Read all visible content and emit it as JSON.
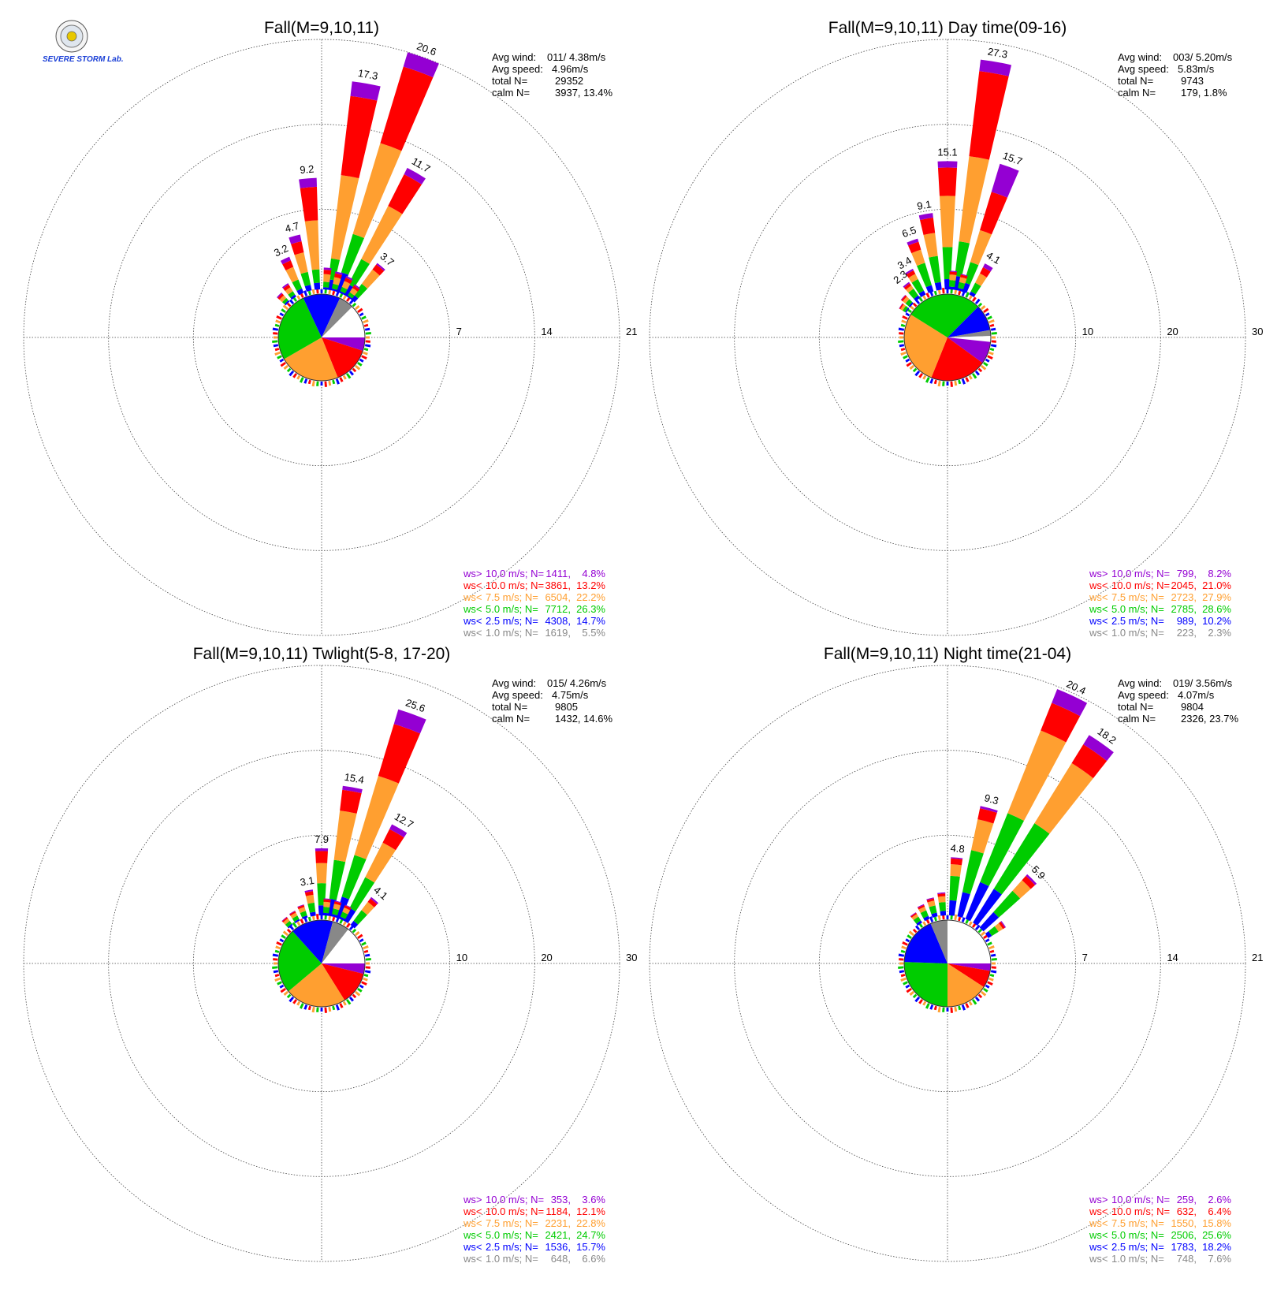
{
  "colors": {
    "purple": "#9400d3",
    "red": "#ff0000",
    "orange": "#ff9f30",
    "green": "#00cc00",
    "blue": "#0000ff",
    "gray": "#888888"
  },
  "logo": {
    "icon": "severe-storm-lab-seal-icon",
    "text": "SEVERE STORM Lab."
  },
  "chart_data": [
    {
      "type": "wind-rose",
      "title": "Fall(M=9,10,11)",
      "ring_labels": [
        "7",
        "14",
        "21"
      ],
      "rmax": 21,
      "grid": true,
      "stats": [
        {
          "label": "Avg wind:",
          "value": "011/ 4.38m/s"
        },
        {
          "label": "Avg speed:",
          "value": "4.96m/s"
        },
        {
          "label": "total N=",
          "value": "29352"
        },
        {
          "label": "calm N=",
          "value": "3937,  13.4%"
        }
      ],
      "legend": [
        {
          "class": "ws>",
          "speed": "10.0 m/s; N=",
          "n": "1411",
          "pct": "4.8%",
          "color": "#9400d3"
        },
        {
          "class": "ws<",
          "speed": "10.0 m/s; N=",
          "n": "3861",
          "pct": "13.2%",
          "color": "#ff0000"
        },
        {
          "class": "ws<",
          "speed": "7.5 m/s; N=",
          "n": "6504",
          "pct": "22.2%",
          "color": "#ff9f30"
        },
        {
          "class": "ws<",
          "speed": "5.0 m/s; N=",
          "n": "7712",
          "pct": "26.3%",
          "color": "#00cc00"
        },
        {
          "class": "ws<",
          "speed": "2.5 m/s; N=",
          "n": "4308",
          "pct": "14.7%",
          "color": "#0000ff"
        },
        {
          "class": "ws<",
          "speed": "1.0 m/s; N=",
          "n": "1619",
          "pct": "5.5%",
          "color": "#888888"
        }
      ],
      "directions": [
        {
          "deg": 355,
          "pct": 9.2,
          "label": "9.2",
          "fr": [
            0.08,
            0.3,
            0.44,
            0.12,
            0.06
          ]
        },
        {
          "deg": 10,
          "pct": 17.3,
          "label": "17.3",
          "fr": [
            0.07,
            0.38,
            0.4,
            0.1,
            0.05
          ]
        },
        {
          "deg": 20,
          "pct": 20.6,
          "label": "20.6",
          "fr": [
            0.06,
            0.32,
            0.38,
            0.16,
            0.08
          ]
        },
        {
          "deg": 30,
          "pct": 11.7,
          "label": "11.7",
          "fr": [
            0.05,
            0.25,
            0.42,
            0.2,
            0.08
          ]
        },
        {
          "deg": 345,
          "pct": 4.7,
          "label": "4.7",
          "fr": [
            0.12,
            0.2,
            0.35,
            0.23,
            0.1
          ]
        },
        {
          "deg": 335,
          "pct": 3.2,
          "label": "3.2",
          "fr": [
            0.1,
            0.18,
            0.35,
            0.25,
            0.12
          ]
        },
        {
          "deg": 40,
          "pct": 3.7,
          "label": "3.7",
          "fr": [
            0.04,
            0.14,
            0.4,
            0.3,
            0.12
          ]
        },
        {
          "deg": 5,
          "pct": 1.8,
          "label": "",
          "fr": [
            0.1,
            0.2,
            0.35,
            0.25,
            0.1
          ]
        },
        {
          "deg": 15,
          "pct": 1.6,
          "label": "",
          "fr": [
            0.1,
            0.2,
            0.35,
            0.25,
            0.1
          ]
        },
        {
          "deg": 25,
          "pct": 1.5,
          "label": "",
          "fr": [
            0.1,
            0.2,
            0.35,
            0.25,
            0.1
          ]
        },
        {
          "deg": 35,
          "pct": 1.2,
          "label": "",
          "fr": [
            0.1,
            0.2,
            0.35,
            0.25,
            0.1
          ]
        },
        {
          "deg": 325,
          "pct": 1.3,
          "label": "",
          "fr": [
            0.1,
            0.2,
            0.3,
            0.25,
            0.15
          ]
        },
        {
          "deg": 315,
          "pct": 1.0,
          "label": "",
          "fr": [
            0.1,
            0.2,
            0.3,
            0.25,
            0.15
          ]
        }
      ],
      "ring_dirs": 72,
      "calm_pie": [
        {
          "color": "#9400d3",
          "start": 90,
          "end": 108
        },
        {
          "color": "#ff0000",
          "start": 108,
          "end": 158
        },
        {
          "color": "#ff9f30",
          "start": 158,
          "end": 240
        },
        {
          "color": "#00cc00",
          "start": 240,
          "end": 335
        },
        {
          "color": "#0000ff",
          "start": 335,
          "end": 25
        },
        {
          "color": "#888888",
          "start": 25,
          "end": 45
        },
        {
          "color": "#ffffff",
          "start": 45,
          "end": 90
        }
      ]
    },
    {
      "type": "wind-rose",
      "title": "Fall(M=9,10,11) Day time(09-16)",
      "ring_labels": [
        "10",
        "20",
        "30"
      ],
      "rmax": 30,
      "grid": true,
      "stats": [
        {
          "label": "Avg wind:",
          "value": "003/ 5.20m/s"
        },
        {
          "label": "Avg speed:",
          "value": "5.83m/s"
        },
        {
          "label": "total N=",
          "value": "9743"
        },
        {
          "label": "calm N=",
          "value": "179,   1.8%"
        }
      ],
      "legend": [
        {
          "class": "ws>",
          "speed": "10.0 m/s; N=",
          "n": "799",
          "pct": "8.2%",
          "color": "#9400d3"
        },
        {
          "class": "ws<",
          "speed": "10.0 m/s; N=",
          "n": "2045",
          "pct": "21.0%",
          "color": "#ff0000"
        },
        {
          "class": "ws<",
          "speed": "7.5 m/s; N=",
          "n": "2723",
          "pct": "27.9%",
          "color": "#ff9f30"
        },
        {
          "class": "ws<",
          "speed": "5.0 m/s; N=",
          "n": "2785",
          "pct": "28.6%",
          "color": "#00cc00"
        },
        {
          "class": "ws<",
          "speed": "2.5 m/s; N=",
          "n": "989",
          "pct": "10.2%",
          "color": "#0000ff"
        },
        {
          "class": "ws<",
          "speed": "1.0 m/s; N=",
          "n": "223",
          "pct": "2.3%",
          "color": "#888888"
        }
      ],
      "directions": [
        {
          "deg": 0,
          "pct": 15.1,
          "label": "15.1",
          "fr": [
            0.05,
            0.22,
            0.4,
            0.25,
            0.08
          ]
        },
        {
          "deg": 10,
          "pct": 27.3,
          "label": "27.3",
          "fr": [
            0.05,
            0.37,
            0.37,
            0.15,
            0.06
          ]
        },
        {
          "deg": 20,
          "pct": 15.7,
          "label": "15.7",
          "fr": [
            0.22,
            0.3,
            0.25,
            0.16,
            0.07
          ]
        },
        {
          "deg": 350,
          "pct": 9.1,
          "label": "9.1",
          "fr": [
            0.06,
            0.2,
            0.3,
            0.34,
            0.1
          ]
        },
        {
          "deg": 340,
          "pct": 6.5,
          "label": "6.5",
          "fr": [
            0.06,
            0.15,
            0.25,
            0.42,
            0.12
          ]
        },
        {
          "deg": 330,
          "pct": 3.4,
          "label": "3.4",
          "fr": [
            0.06,
            0.14,
            0.2,
            0.45,
            0.15
          ]
        },
        {
          "deg": 322,
          "pct": 2.3,
          "label": "2.3",
          "fr": [
            0.08,
            0.14,
            0.2,
            0.42,
            0.16
          ]
        },
        {
          "deg": 30,
          "pct": 4.1,
          "label": "4.1",
          "fr": [
            0.12,
            0.2,
            0.3,
            0.28,
            0.1
          ]
        },
        {
          "deg": 5,
          "pct": 2.2,
          "label": "",
          "fr": [
            0.05,
            0.15,
            0.3,
            0.35,
            0.15
          ]
        },
        {
          "deg": 15,
          "pct": 2.0,
          "label": "",
          "fr": [
            0.05,
            0.15,
            0.3,
            0.35,
            0.15
          ]
        },
        {
          "deg": 312,
          "pct": 1.4,
          "label": "",
          "fr": [
            0.05,
            0.15,
            0.3,
            0.35,
            0.15
          ]
        },
        {
          "deg": 304,
          "pct": 1.0,
          "label": "",
          "fr": [
            0.05,
            0.15,
            0.3,
            0.35,
            0.15
          ]
        }
      ],
      "ring_dirs": 72,
      "calm_pie": [
        {
          "color": "#888888",
          "start": 80,
          "end": 88
        },
        {
          "color": "#ffffff",
          "start": 88,
          "end": 96
        },
        {
          "color": "#9400d3",
          "start": 96,
          "end": 126
        },
        {
          "color": "#ff0000",
          "start": 126,
          "end": 202
        },
        {
          "color": "#ff9f30",
          "start": 202,
          "end": 302
        },
        {
          "color": "#00cc00",
          "start": 302,
          "end": 45
        },
        {
          "color": "#0000ff",
          "start": 45,
          "end": 80
        }
      ]
    },
    {
      "type": "wind-rose",
      "title": "Fall(M=9,10,11) Twlight(5-8, 17-20)",
      "ring_labels": [
        "10",
        "20",
        "30"
      ],
      "rmax": 30,
      "grid": true,
      "stats": [
        {
          "label": "Avg wind:",
          "value": "015/ 4.26m/s"
        },
        {
          "label": "Avg speed:",
          "value": "4.75m/s"
        },
        {
          "label": "total N=",
          "value": "9805"
        },
        {
          "label": "calm N=",
          "value": "1432,  14.6%"
        }
      ],
      "legend": [
        {
          "class": "ws>",
          "speed": "10.0 m/s; N=",
          "n": "353",
          "pct": "3.6%",
          "color": "#9400d3"
        },
        {
          "class": "ws<",
          "speed": "10.0 m/s; N=",
          "n": "1184",
          "pct": "12.1%",
          "color": "#ff0000"
        },
        {
          "class": "ws<",
          "speed": "7.5 m/s; N=",
          "n": "2231",
          "pct": "22.8%",
          "color": "#ff9f30"
        },
        {
          "class": "ws<",
          "speed": "5.0 m/s; N=",
          "n": "2421",
          "pct": "24.7%",
          "color": "#00cc00"
        },
        {
          "class": "ws<",
          "speed": "2.5 m/s; N=",
          "n": "1536",
          "pct": "15.7%",
          "color": "#0000ff"
        },
        {
          "class": "ws<",
          "speed": "1.0 m/s; N=",
          "n": "648",
          "pct": "6.6%",
          "color": "#888888"
        }
      ],
      "directions": [
        {
          "deg": 0,
          "pct": 7.9,
          "label": "7.9",
          "fr": [
            0.04,
            0.18,
            0.3,
            0.33,
            0.15
          ]
        },
        {
          "deg": 10,
          "pct": 15.4,
          "label": "15.4",
          "fr": [
            0.03,
            0.16,
            0.38,
            0.3,
            0.13
          ]
        },
        {
          "deg": 20,
          "pct": 25.6,
          "label": "25.6",
          "fr": [
            0.07,
            0.25,
            0.38,
            0.2,
            0.1
          ]
        },
        {
          "deg": 30,
          "pct": 12.7,
          "label": "12.7",
          "fr": [
            0.05,
            0.14,
            0.36,
            0.32,
            0.13
          ]
        },
        {
          "deg": 350,
          "pct": 3.1,
          "label": "3.1",
          "fr": [
            0.06,
            0.14,
            0.3,
            0.35,
            0.15
          ]
        },
        {
          "deg": 40,
          "pct": 4.1,
          "label": "4.1",
          "fr": [
            0.05,
            0.12,
            0.3,
            0.38,
            0.15
          ]
        },
        {
          "deg": 5,
          "pct": 2.0,
          "label": "",
          "fr": [
            0.05,
            0.15,
            0.3,
            0.35,
            0.15
          ]
        },
        {
          "deg": 15,
          "pct": 1.9,
          "label": "",
          "fr": [
            0.05,
            0.15,
            0.3,
            0.35,
            0.15
          ]
        },
        {
          "deg": 25,
          "pct": 1.8,
          "label": "",
          "fr": [
            0.05,
            0.15,
            0.3,
            0.35,
            0.15
          ]
        },
        {
          "deg": 340,
          "pct": 1.6,
          "label": "",
          "fr": [
            0.05,
            0.15,
            0.3,
            0.35,
            0.15
          ]
        },
        {
          "deg": 330,
          "pct": 1.3,
          "label": "",
          "fr": [
            0.05,
            0.15,
            0.3,
            0.35,
            0.15
          ]
        },
        {
          "deg": 320,
          "pct": 1.2,
          "label": "",
          "fr": [
            0.05,
            0.15,
            0.3,
            0.35,
            0.15
          ]
        }
      ],
      "ring_dirs": 72,
      "calm_pie": [
        {
          "color": "#9400d3",
          "start": 90,
          "end": 104
        },
        {
          "color": "#ff0000",
          "start": 104,
          "end": 148
        },
        {
          "color": "#ff9f30",
          "start": 148,
          "end": 230
        },
        {
          "color": "#00cc00",
          "start": 230,
          "end": 318
        },
        {
          "color": "#0000ff",
          "start": 318,
          "end": 15
        },
        {
          "color": "#888888",
          "start": 15,
          "end": 38
        },
        {
          "color": "#ffffff",
          "start": 38,
          "end": 90
        }
      ]
    },
    {
      "type": "wind-rose",
      "title": "Fall(M=9,10,11) Night time(21-04)",
      "ring_labels": [
        "7",
        "14",
        "21"
      ],
      "rmax": 21,
      "grid": true,
      "stats": [
        {
          "label": "Avg wind:",
          "value": "019/ 3.56m/s"
        },
        {
          "label": "Avg speed:",
          "value": "4.07m/s"
        },
        {
          "label": "total N=",
          "value": "9804"
        },
        {
          "label": "calm N=",
          "value": "2326,  23.7%"
        }
      ],
      "legend": [
        {
          "class": "ws>",
          "speed": "10.0 m/s; N=",
          "n": "259",
          "pct": "2.6%",
          "color": "#9400d3"
        },
        {
          "class": "ws<",
          "speed": "10.0 m/s; N=",
          "n": "632",
          "pct": "6.4%",
          "color": "#ff0000"
        },
        {
          "class": "ws<",
          "speed": "7.5 m/s; N=",
          "n": "1550",
          "pct": "15.8%",
          "color": "#ff9f30"
        },
        {
          "class": "ws<",
          "speed": "5.0 m/s; N=",
          "n": "2506",
          "pct": "25.6%",
          "color": "#00cc00"
        },
        {
          "class": "ws<",
          "speed": "2.5 m/s; N=",
          "n": "1783",
          "pct": "18.2%",
          "color": "#0000ff"
        },
        {
          "class": "ws<",
          "speed": "1.0 m/s; N=",
          "n": "748",
          "pct": "7.6%",
          "color": "#888888"
        }
      ],
      "directions": [
        {
          "deg": 5,
          "pct": 4.8,
          "label": "4.8",
          "fr": [
            0.02,
            0.1,
            0.2,
            0.42,
            0.26
          ]
        },
        {
          "deg": 15,
          "pct": 9.3,
          "label": "9.3",
          "fr": [
            0.02,
            0.1,
            0.28,
            0.38,
            0.22
          ]
        },
        {
          "deg": 25,
          "pct": 20.4,
          "label": "20.4",
          "fr": [
            0.06,
            0.12,
            0.36,
            0.3,
            0.16
          ]
        },
        {
          "deg": 35,
          "pct": 18.2,
          "label": "18.2",
          "fr": [
            0.05,
            0.1,
            0.32,
            0.35,
            0.18
          ]
        },
        {
          "deg": 45,
          "pct": 5.9,
          "label": "5.9",
          "fr": [
            0.03,
            0.08,
            0.2,
            0.4,
            0.29
          ]
        },
        {
          "deg": 355,
          "pct": 1.9,
          "label": "",
          "fr": [
            0.05,
            0.12,
            0.25,
            0.38,
            0.2
          ]
        },
        {
          "deg": 345,
          "pct": 1.6,
          "label": "",
          "fr": [
            0.05,
            0.12,
            0.25,
            0.38,
            0.2
          ]
        },
        {
          "deg": 335,
          "pct": 1.3,
          "label": "",
          "fr": [
            0.05,
            0.12,
            0.25,
            0.38,
            0.2
          ]
        },
        {
          "deg": 55,
          "pct": 1.7,
          "label": "",
          "fr": [
            0.05,
            0.12,
            0.25,
            0.38,
            0.2
          ]
        },
        {
          "deg": 325,
          "pct": 1.0,
          "label": "",
          "fr": [
            0.05,
            0.12,
            0.25,
            0.38,
            0.2
          ]
        }
      ],
      "ring_dirs": 72,
      "calm_pie": [
        {
          "color": "#9400d3",
          "start": 90,
          "end": 100
        },
        {
          "color": "#ff0000",
          "start": 100,
          "end": 123
        },
        {
          "color": "#ff9f30",
          "start": 123,
          "end": 180
        },
        {
          "color": "#00cc00",
          "start": 180,
          "end": 272
        },
        {
          "color": "#0000ff",
          "start": 272,
          "end": 337
        },
        {
          "color": "#888888",
          "start": 337,
          "end": 0
        },
        {
          "color": "#ffffff",
          "start": 0,
          "end": 90
        }
      ]
    }
  ]
}
